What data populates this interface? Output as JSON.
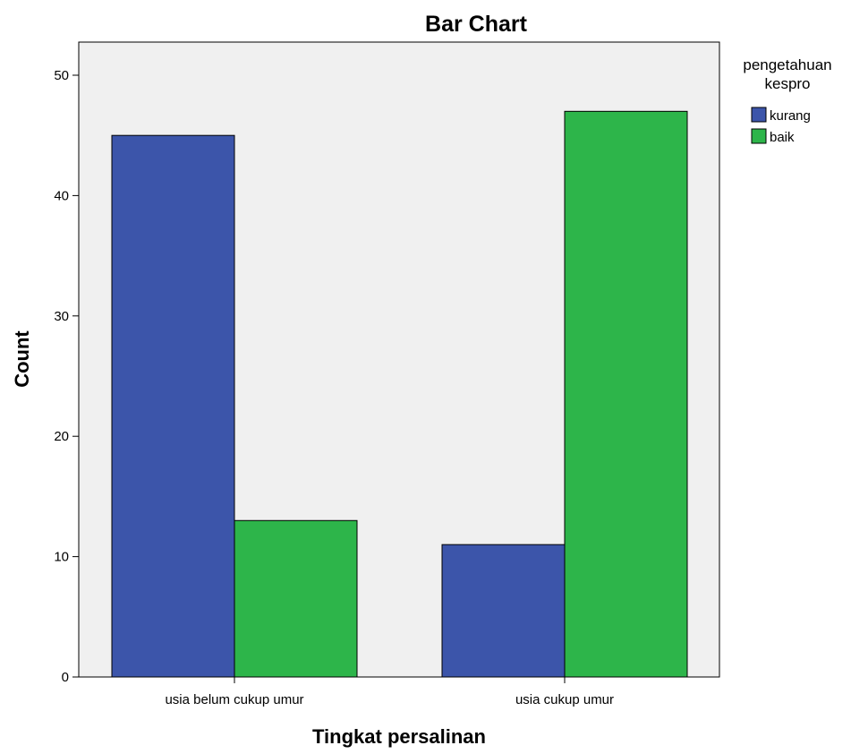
{
  "chart_data": {
    "type": "bar",
    "title": "Bar Chart",
    "xlabel": "Tingkat persalinan",
    "ylabel": "Count",
    "categories": [
      "usia belum cukup umur",
      "usia cukup umur"
    ],
    "series": [
      {
        "name": "kurang",
        "values": [
          45,
          11
        ],
        "color": "#3C55AA"
      },
      {
        "name": "baik",
        "values": [
          13,
          47
        ],
        "color": "#2DB54A"
      }
    ],
    "ylim": [
      0,
      50
    ],
    "yticks": [
      0,
      10,
      20,
      30,
      40,
      50
    ],
    "legend": {
      "title": "pengetahuan kespro",
      "title_lines": [
        "pengetahuan",
        "kespro"
      ],
      "placement": "top-right"
    },
    "grid": false,
    "plot_background": "#F0F0F0"
  }
}
